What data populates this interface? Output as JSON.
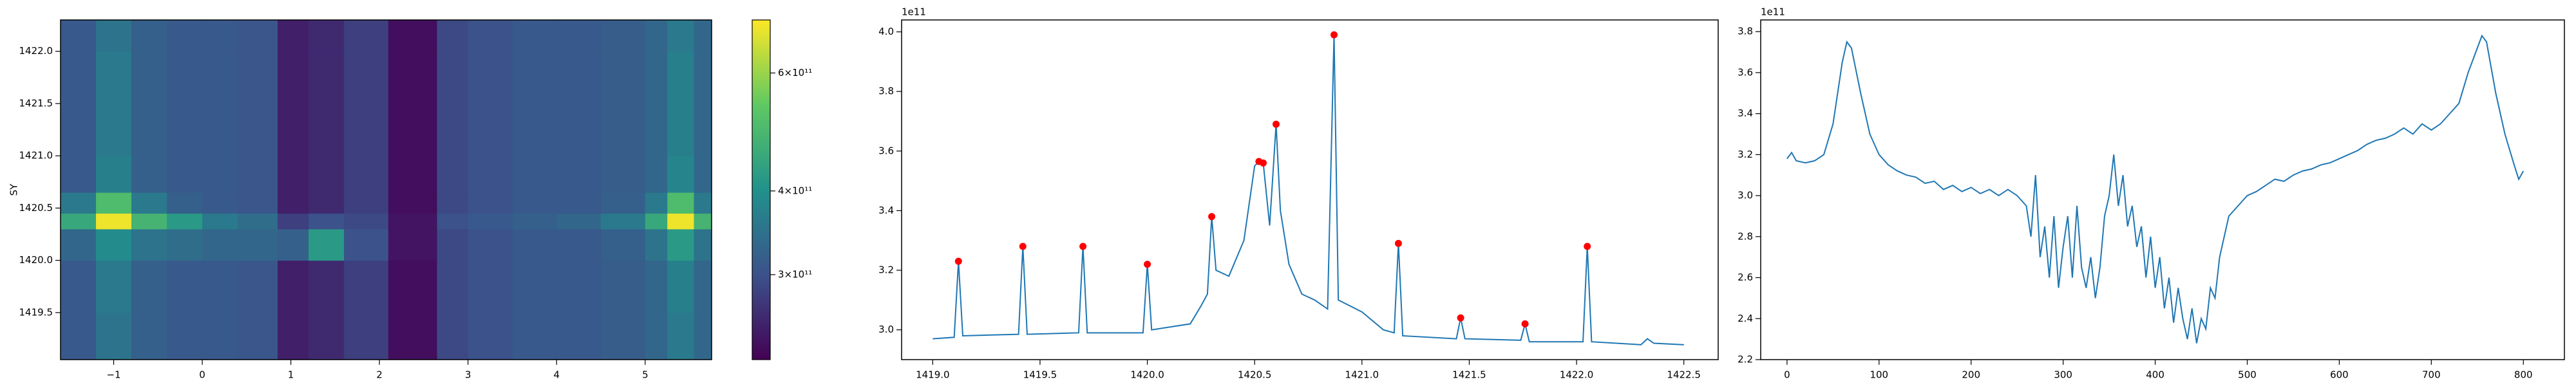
{
  "chart_data": [
    {
      "type": "heatmap",
      "ylabel": "SY",
      "colormap": "viridis",
      "color_scale": "log",
      "xlim": [
        -1.6,
        5.75
      ],
      "ylim": [
        1419.05,
        1422.3
      ],
      "xticks": [
        {
          "value": -1,
          "label": "−1"
        },
        0,
        1,
        2,
        3,
        4,
        5
      ],
      "yticks": [
        {
          "value": 1419.5,
          "label": "1419.5"
        },
        {
          "value": 1420,
          "label": "1420.0"
        },
        {
          "value": 1420.5,
          "label": "1420.5"
        },
        {
          "value": 1421,
          "label": "1421.0"
        },
        {
          "value": 1421.5,
          "label": "1421.5"
        },
        {
          "value": 1422,
          "label": "1422.0"
        }
      ],
      "x_edges": [
        -1.6,
        -1.2,
        -0.8,
        -0.4,
        0,
        0.4,
        0.85,
        1.2,
        1.6,
        2.1,
        2.65,
        3.0,
        3.5,
        4.0,
        4.5,
        5.0,
        5.25,
        5.55,
        5.75
      ],
      "y_edges": [
        1419.05,
        1419.5,
        1420.0,
        1420.3,
        1420.45,
        1420.65,
        1421.0,
        1421.5,
        1422.0,
        1422.3
      ],
      "z": [
        [
          310000000000.0,
          350000000000.0,
          320000000000.0,
          310000000000.0,
          310000000000.0,
          305000000000.0,
          250000000000.0,
          260000000000.0,
          280000000000.0,
          235000000000.0,
          290000000000.0,
          300000000000.0,
          310000000000.0,
          310000000000.0,
          315000000000.0,
          330000000000.0,
          360000000000.0,
          330000000000.0
        ],
        [
          310000000000.0,
          360000000000.0,
          320000000000.0,
          310000000000.0,
          310000000000.0,
          305000000000.0,
          250000000000.0,
          260000000000.0,
          280000000000.0,
          235000000000.0,
          290000000000.0,
          300000000000.0,
          310000000000.0,
          310000000000.0,
          315000000000.0,
          330000000000.0,
          370000000000.0,
          330000000000.0
        ],
        [
          330000000000.0,
          390000000000.0,
          350000000000.0,
          340000000000.0,
          330000000000.0,
          330000000000.0,
          320000000000.0,
          420000000000.0,
          300000000000.0,
          240000000000.0,
          290000000000.0,
          300000000000.0,
          310000000000.0,
          310000000000.0,
          320000000000.0,
          350000000000.0,
          420000000000.0,
          350000000000.0
        ],
        [
          450000000000.0,
          700000000000.0,
          480000000000.0,
          420000000000.0,
          360000000000.0,
          340000000000.0,
          280000000000.0,
          300000000000.0,
          290000000000.0,
          240000000000.0,
          300000000000.0,
          310000000000.0,
          320000000000.0,
          330000000000.0,
          360000000000.0,
          450000000000.0,
          700000000000.0,
          480000000000.0
        ],
        [
          360000000000.0,
          500000000000.0,
          360000000000.0,
          320000000000.0,
          310000000000.0,
          305000000000.0,
          250000000000.0,
          260000000000.0,
          280000000000.0,
          235000000000.0,
          290000000000.0,
          300000000000.0,
          310000000000.0,
          310000000000.0,
          320000000000.0,
          360000000000.0,
          500000000000.0,
          360000000000.0
        ],
        [
          310000000000.0,
          370000000000.0,
          320000000000.0,
          310000000000.0,
          310000000000.0,
          305000000000.0,
          250000000000.0,
          260000000000.0,
          280000000000.0,
          235000000000.0,
          290000000000.0,
          300000000000.0,
          310000000000.0,
          310000000000.0,
          315000000000.0,
          330000000000.0,
          380000000000.0,
          330000000000.0
        ],
        [
          310000000000.0,
          360000000000.0,
          320000000000.0,
          310000000000.0,
          310000000000.0,
          305000000000.0,
          250000000000.0,
          260000000000.0,
          280000000000.0,
          235000000000.0,
          290000000000.0,
          300000000000.0,
          310000000000.0,
          310000000000.0,
          315000000000.0,
          330000000000.0,
          370000000000.0,
          330000000000.0
        ],
        [
          310000000000.0,
          360000000000.0,
          320000000000.0,
          310000000000.0,
          310000000000.0,
          305000000000.0,
          250000000000.0,
          260000000000.0,
          280000000000.0,
          235000000000.0,
          290000000000.0,
          300000000000.0,
          310000000000.0,
          310000000000.0,
          315000000000.0,
          330000000000.0,
          370000000000.0,
          330000000000.0
        ],
        [
          310000000000.0,
          350000000000.0,
          320000000000.0,
          310000000000.0,
          310000000000.0,
          305000000000.0,
          250000000000.0,
          260000000000.0,
          280000000000.0,
          235000000000.0,
          290000000000.0,
          300000000000.0,
          310000000000.0,
          310000000000.0,
          315000000000.0,
          330000000000.0,
          360000000000.0,
          330000000000.0
        ]
      ],
      "clim": [
        224000000000.0,
        720000000000.0
      ],
      "cticks": [
        {
          "value": 300000000000.0,
          "label": "3×10¹¹"
        },
        {
          "value": 400000000000.0,
          "label": "4×10¹¹"
        },
        {
          "value": 600000000000.0,
          "label": "6×10¹¹"
        }
      ]
    },
    {
      "type": "line",
      "color": "#1f77b4",
      "y_offset_label": "1e11",
      "xlim": [
        1418.855,
        1422.66
      ],
      "ylim": [
        2.9,
        4.04
      ],
      "xticks": [
        {
          "value": 1419,
          "label": "1419.0"
        },
        {
          "value": 1419.5,
          "label": "1419.5"
        },
        {
          "value": 1420,
          "label": "1420.0"
        },
        {
          "value": 1420.5,
          "label": "1420.5"
        },
        {
          "value": 1421,
          "label": "1421.0"
        },
        {
          "value": 1421.5,
          "label": "1421.5"
        },
        {
          "value": 1422,
          "label": "1422.0"
        },
        {
          "value": 1422.5,
          "label": "1422.5"
        }
      ],
      "yticks": [
        {
          "value": 3,
          "label": "3.0"
        },
        3.2,
        3.4,
        3.6,
        3.8,
        {
          "value": 4,
          "label": "4.0"
        }
      ],
      "x": [
        1419.0,
        1419.1,
        1419.12,
        1419.14,
        1419.4,
        1419.42,
        1419.44,
        1419.68,
        1419.7,
        1419.72,
        1419.98,
        1420.0,
        1420.02,
        1420.2,
        1420.25,
        1420.28,
        1420.3,
        1420.32,
        1420.38,
        1420.45,
        1420.5,
        1420.52,
        1420.54,
        1420.57,
        1420.6,
        1420.62,
        1420.66,
        1420.72,
        1420.78,
        1420.84,
        1420.87,
        1420.89,
        1421.0,
        1421.1,
        1421.15,
        1421.17,
        1421.19,
        1421.44,
        1421.46,
        1421.48,
        1421.74,
        1421.76,
        1421.78,
        1422.03,
        1422.05,
        1422.07,
        1422.3,
        1422.33,
        1422.36,
        1422.5
      ],
      "values": [
        2.97,
        2.975,
        3.23,
        2.98,
        2.985,
        3.28,
        2.985,
        2.99,
        3.28,
        2.99,
        2.99,
        3.22,
        3.0,
        3.02,
        3.08,
        3.12,
        3.38,
        3.2,
        3.18,
        3.3,
        3.55,
        3.565,
        3.56,
        3.35,
        3.69,
        3.4,
        3.22,
        3.12,
        3.1,
        3.07,
        3.99,
        3.1,
        3.06,
        3.0,
        2.99,
        3.29,
        2.98,
        2.97,
        3.04,
        2.97,
        2.965,
        3.02,
        2.96,
        2.96,
        3.28,
        2.96,
        2.95,
        2.97,
        2.955,
        2.95
      ],
      "peaks": {
        "color": "#ff0000",
        "x": [
          1419.12,
          1419.42,
          1419.7,
          1420.0,
          1420.3,
          1420.52,
          1420.54,
          1420.6,
          1420.87,
          1421.17,
          1421.46,
          1421.76,
          1422.05
        ],
        "values": [
          3.23,
          3.28,
          3.28,
          3.22,
          3.38,
          3.565,
          3.56,
          3.69,
          3.99,
          3.29,
          3.04,
          3.02,
          3.28
        ]
      }
    },
    {
      "type": "line",
      "color": "#1f77b4",
      "y_offset_label": "1e11",
      "xlim": [
        -28.6,
        844.6
      ],
      "ylim": [
        2.2,
        3.857
      ],
      "xticks": [
        0,
        100,
        200,
        300,
        400,
        500,
        600,
        700,
        800
      ],
      "yticks": [
        2.2,
        2.4,
        2.6,
        2.8,
        {
          "value": 3,
          "label": "3.0"
        },
        3.2,
        3.4,
        3.6,
        3.8
      ],
      "x": [
        0,
        5,
        10,
        20,
        30,
        40,
        50,
        60,
        65,
        70,
        80,
        90,
        100,
        110,
        120,
        130,
        140,
        150,
        160,
        170,
        180,
        190,
        200,
        210,
        220,
        230,
        240,
        250,
        260,
        265,
        270,
        275,
        280,
        285,
        290,
        295,
        300,
        305,
        310,
        315,
        320,
        325,
        330,
        335,
        340,
        345,
        350,
        355,
        360,
        365,
        370,
        375,
        380,
        385,
        390,
        395,
        400,
        405,
        410,
        415,
        420,
        425,
        430,
        435,
        440,
        445,
        450,
        455,
        460,
        465,
        470,
        475,
        480,
        490,
        500,
        510,
        520,
        530,
        540,
        550,
        560,
        570,
        580,
        590,
        600,
        610,
        620,
        630,
        640,
        650,
        660,
        670,
        680,
        690,
        700,
        710,
        720,
        730,
        740,
        750,
        755,
        760,
        770,
        780,
        790,
        795,
        800
      ],
      "values": [
        3.18,
        3.21,
        3.17,
        3.16,
        3.17,
        3.2,
        3.35,
        3.65,
        3.75,
        3.72,
        3.5,
        3.3,
        3.2,
        3.15,
        3.12,
        3.1,
        3.09,
        3.06,
        3.07,
        3.03,
        3.05,
        3.02,
        3.04,
        3.01,
        3.03,
        3.0,
        3.03,
        3.0,
        2.95,
        2.8,
        3.1,
        2.7,
        2.85,
        2.6,
        2.9,
        2.55,
        2.75,
        2.9,
        2.6,
        2.95,
        2.65,
        2.55,
        2.7,
        2.5,
        2.65,
        2.9,
        3.0,
        3.2,
        2.95,
        3.1,
        2.85,
        2.95,
        2.75,
        2.85,
        2.6,
        2.8,
        2.55,
        2.7,
        2.45,
        2.6,
        2.38,
        2.55,
        2.4,
        2.3,
        2.45,
        2.28,
        2.4,
        2.35,
        2.55,
        2.5,
        2.7,
        2.8,
        2.9,
        2.95,
        3.0,
        3.02,
        3.05,
        3.08,
        3.07,
        3.1,
        3.12,
        3.13,
        3.15,
        3.16,
        3.18,
        3.2,
        3.22,
        3.25,
        3.27,
        3.28,
        3.3,
        3.33,
        3.3,
        3.35,
        3.32,
        3.35,
        3.4,
        3.45,
        3.6,
        3.72,
        3.78,
        3.75,
        3.5,
        3.3,
        3.15,
        3.08,
        3.12
      ]
    }
  ]
}
